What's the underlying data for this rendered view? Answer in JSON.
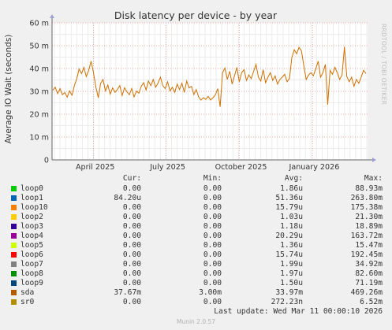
{
  "chart_data": {
    "type": "line",
    "title": "Disk latency per device - by year",
    "ylabel": "Average IO Wait (seconds)",
    "ylim": [
      0,
      0.06
    ],
    "yticks": [
      {
        "value": 0,
        "label": "0"
      },
      {
        "value": 0.01,
        "label": "10 m"
      },
      {
        "value": 0.02,
        "label": "20 m"
      },
      {
        "value": 0.03,
        "label": "30 m"
      },
      {
        "value": 0.04,
        "label": "40 m"
      },
      {
        "value": 0.05,
        "label": "50 m"
      },
      {
        "value": 0.06,
        "label": "60 m"
      }
    ],
    "xlim": [
      "2025-02-08",
      "2026-03-11"
    ],
    "xticks": [
      {
        "date": "2025-04-01",
        "label": "April 2025"
      },
      {
        "date": "2025-07-01",
        "label": "July 2025"
      },
      {
        "date": "2025-10-01",
        "label": "October 2025"
      },
      {
        "date": "2026-01-01",
        "label": "January 2026"
      }
    ],
    "grid": true,
    "series": [
      {
        "name": "sda",
        "color": "#cc7000",
        "points": [
          [
            "2025-02-09",
            0.0305
          ],
          [
            "2025-02-12",
            0.0318
          ],
          [
            "2025-02-15",
            0.029
          ],
          [
            "2025-02-18",
            0.0312
          ],
          [
            "2025-02-21",
            0.0285
          ],
          [
            "2025-02-24",
            0.0295
          ],
          [
            "2025-02-27",
            0.0275
          ],
          [
            "2025-03-02",
            0.0302
          ],
          [
            "2025-03-05",
            0.0283
          ],
          [
            "2025-03-08",
            0.0325
          ],
          [
            "2025-03-11",
            0.0355
          ],
          [
            "2025-03-14",
            0.0398
          ],
          [
            "2025-03-17",
            0.0378
          ],
          [
            "2025-03-20",
            0.0405
          ],
          [
            "2025-03-23",
            0.0365
          ],
          [
            "2025-03-26",
            0.0392
          ],
          [
            "2025-03-29",
            0.0432
          ],
          [
            "2025-04-01",
            0.0382
          ],
          [
            "2025-04-04",
            0.0318
          ],
          [
            "2025-04-07",
            0.0272
          ],
          [
            "2025-04-10",
            0.0335
          ],
          [
            "2025-04-13",
            0.0352
          ],
          [
            "2025-04-16",
            0.0302
          ],
          [
            "2025-04-19",
            0.0328
          ],
          [
            "2025-04-22",
            0.0288
          ],
          [
            "2025-04-25",
            0.0315
          ],
          [
            "2025-04-28",
            0.0296
          ],
          [
            "2025-05-01",
            0.0308
          ],
          [
            "2025-05-04",
            0.0325
          ],
          [
            "2025-05-07",
            0.0282
          ],
          [
            "2025-05-10",
            0.0316
          ],
          [
            "2025-05-13",
            0.0298
          ],
          [
            "2025-05-16",
            0.0285
          ],
          [
            "2025-05-19",
            0.0312
          ],
          [
            "2025-05-22",
            0.0276
          ],
          [
            "2025-05-25",
            0.0301
          ],
          [
            "2025-05-28",
            0.0292
          ],
          [
            "2025-05-31",
            0.0322
          ],
          [
            "2025-06-03",
            0.0338
          ],
          [
            "2025-06-06",
            0.0306
          ],
          [
            "2025-06-09",
            0.0345
          ],
          [
            "2025-06-12",
            0.0325
          ],
          [
            "2025-06-15",
            0.0352
          ],
          [
            "2025-06-18",
            0.0318
          ],
          [
            "2025-06-21",
            0.0336
          ],
          [
            "2025-06-24",
            0.0362
          ],
          [
            "2025-06-27",
            0.0326
          ],
          [
            "2025-06-30",
            0.0312
          ],
          [
            "2025-07-03",
            0.0342
          ],
          [
            "2025-07-06",
            0.0302
          ],
          [
            "2025-07-09",
            0.0318
          ],
          [
            "2025-07-12",
            0.0296
          ],
          [
            "2025-07-15",
            0.0332
          ],
          [
            "2025-07-18",
            0.0308
          ],
          [
            "2025-07-21",
            0.0336
          ],
          [
            "2025-07-24",
            0.0296
          ],
          [
            "2025-07-27",
            0.0345
          ],
          [
            "2025-07-30",
            0.0315
          ],
          [
            "2025-08-02",
            0.0322
          ],
          [
            "2025-08-05",
            0.0286
          ],
          [
            "2025-08-08",
            0.0308
          ],
          [
            "2025-08-11",
            0.0275
          ],
          [
            "2025-08-14",
            0.0262
          ],
          [
            "2025-08-17",
            0.0272
          ],
          [
            "2025-08-20",
            0.0265
          ],
          [
            "2025-08-23",
            0.0278
          ],
          [
            "2025-08-26",
            0.0262
          ],
          [
            "2025-08-29",
            0.0272
          ],
          [
            "2025-09-01",
            0.0285
          ],
          [
            "2025-09-04",
            0.0312
          ],
          [
            "2025-09-07",
            0.0232
          ],
          [
            "2025-09-10",
            0.0382
          ],
          [
            "2025-09-13",
            0.0402
          ],
          [
            "2025-09-16",
            0.0352
          ],
          [
            "2025-09-19",
            0.0388
          ],
          [
            "2025-09-22",
            0.0332
          ],
          [
            "2025-09-25",
            0.0368
          ],
          [
            "2025-09-28",
            0.0405
          ],
          [
            "2025-10-01",
            0.0342
          ],
          [
            "2025-10-04",
            0.0382
          ],
          [
            "2025-10-07",
            0.0395
          ],
          [
            "2025-10-10",
            0.0348
          ],
          [
            "2025-10-13",
            0.0372
          ],
          [
            "2025-10-16",
            0.0355
          ],
          [
            "2025-10-19",
            0.0388
          ],
          [
            "2025-10-22",
            0.0418
          ],
          [
            "2025-10-25",
            0.0362
          ],
          [
            "2025-10-28",
            0.0345
          ],
          [
            "2025-10-31",
            0.0395
          ],
          [
            "2025-11-03",
            0.0338
          ],
          [
            "2025-11-06",
            0.0362
          ],
          [
            "2025-11-09",
            0.0382
          ],
          [
            "2025-11-12",
            0.0348
          ],
          [
            "2025-11-15",
            0.0368
          ],
          [
            "2025-11-18",
            0.0332
          ],
          [
            "2025-11-21",
            0.0352
          ],
          [
            "2025-11-24",
            0.0362
          ],
          [
            "2025-11-27",
            0.0375
          ],
          [
            "2025-11-30",
            0.0342
          ],
          [
            "2025-12-03",
            0.0356
          ],
          [
            "2025-12-06",
            0.0448
          ],
          [
            "2025-12-09",
            0.0482
          ],
          [
            "2025-12-12",
            0.0465
          ],
          [
            "2025-12-15",
            0.0492
          ],
          [
            "2025-12-18",
            0.0478
          ],
          [
            "2025-12-21",
            0.0412
          ],
          [
            "2025-12-24",
            0.0352
          ],
          [
            "2025-12-27",
            0.0372
          ],
          [
            "2025-12-30",
            0.0382
          ],
          [
            "2026-01-02",
            0.0368
          ],
          [
            "2026-01-05",
            0.0398
          ],
          [
            "2026-01-08",
            0.0432
          ],
          [
            "2026-01-11",
            0.0362
          ],
          [
            "2026-01-14",
            0.0382
          ],
          [
            "2026-01-17",
            0.0418
          ],
          [
            "2026-01-20",
            0.0242
          ],
          [
            "2026-01-23",
            0.0392
          ],
          [
            "2026-01-26",
            0.0375
          ],
          [
            "2026-01-29",
            0.0405
          ],
          [
            "2026-02-01",
            0.0382
          ],
          [
            "2026-02-04",
            0.0352
          ],
          [
            "2026-02-07",
            0.0372
          ],
          [
            "2026-02-10",
            0.0495
          ],
          [
            "2026-02-13",
            0.0365
          ],
          [
            "2026-02-16",
            0.0342
          ],
          [
            "2026-02-19",
            0.0362
          ],
          [
            "2026-02-22",
            0.0322
          ],
          [
            "2026-02-25",
            0.0352
          ],
          [
            "2026-02-28",
            0.0335
          ],
          [
            "2026-03-03",
            0.0362
          ],
          [
            "2026-03-06",
            0.0392
          ],
          [
            "2026-03-09",
            0.0378
          ]
        ]
      }
    ],
    "legend_header": {
      "cur": "Cur:",
      "min": "Min:",
      "avg": "Avg:",
      "max": "Max:"
    },
    "legend": [
      {
        "name": "loop0",
        "color": "#00cc00",
        "cur": "0.00",
        "min": "0.00",
        "avg": "1.86u",
        "max": "88.93m"
      },
      {
        "name": "loop1",
        "color": "#0066b3",
        "cur": "84.20u",
        "min": "0.00",
        "avg": "51.36u",
        "max": "263.80m"
      },
      {
        "name": "loop10",
        "color": "#ff8000",
        "cur": "0.00",
        "min": "0.00",
        "avg": "15.79u",
        "max": "175.38m"
      },
      {
        "name": "loop2",
        "color": "#ffcc00",
        "cur": "0.00",
        "min": "0.00",
        "avg": "1.03u",
        "max": "21.30m"
      },
      {
        "name": "loop3",
        "color": "#330099",
        "cur": "0.00",
        "min": "0.00",
        "avg": "1.18u",
        "max": "18.89m"
      },
      {
        "name": "loop4",
        "color": "#990099",
        "cur": "0.00",
        "min": "0.00",
        "avg": "20.29u",
        "max": "163.72m"
      },
      {
        "name": "loop5",
        "color": "#ccff00",
        "cur": "0.00",
        "min": "0.00",
        "avg": "1.36u",
        "max": "15.47m"
      },
      {
        "name": "loop6",
        "color": "#ff0000",
        "cur": "0.00",
        "min": "0.00",
        "avg": "15.74u",
        "max": "192.45m"
      },
      {
        "name": "loop7",
        "color": "#808080",
        "cur": "0.00",
        "min": "0.00",
        "avg": "1.99u",
        "max": "34.92m"
      },
      {
        "name": "loop8",
        "color": "#008f00",
        "cur": "0.00",
        "min": "0.00",
        "avg": "1.97u",
        "max": "82.60m"
      },
      {
        "name": "loop9",
        "color": "#00487d",
        "cur": "0.00",
        "min": "0.00",
        "avg": "1.50u",
        "max": "71.19m"
      },
      {
        "name": "sda",
        "color": "#b35a00",
        "cur": "37.67m",
        "min": "3.00m",
        "avg": "33.97m",
        "max": "469.26m"
      },
      {
        "name": "sr0",
        "color": "#b38f00",
        "cur": "0.00",
        "min": "0.00",
        "avg": "272.23n",
        "max": "6.52m"
      }
    ]
  },
  "last_update": "Last update: Wed Mar 11 00:00:10 2026",
  "footer": "Munin 2.0.57",
  "side_text": "RRDTOOL / TOBI OETIKER"
}
